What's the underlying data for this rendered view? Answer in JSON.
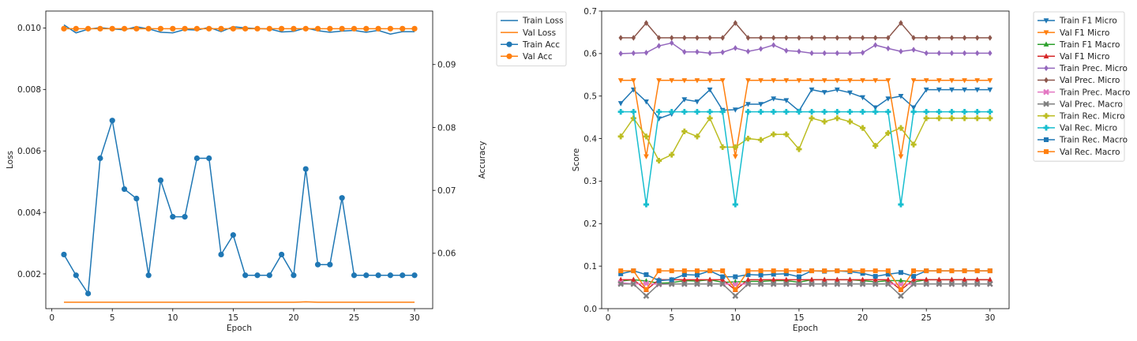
{
  "chart_data": [
    {
      "type": "line",
      "title": "",
      "xlabel": "Epoch",
      "ylabel": "Loss",
      "y2label": "Accuracy",
      "xlim": [
        -0.5,
        31.5
      ],
      "ylim": [
        0.00087,
        0.01055
      ],
      "y2lim": [
        0.0512,
        0.0985
      ],
      "xticks": [
        0,
        5,
        10,
        15,
        20,
        25,
        30
      ],
      "yticks": [
        0.002,
        0.004,
        0.006,
        0.008,
        0.01
      ],
      "yticklabels": [
        "0.002",
        "0.004",
        "0.006",
        "0.008",
        "0.010"
      ],
      "y2ticks": [
        0.06,
        0.07,
        0.08,
        0.09
      ],
      "y2ticklabels": [
        "0.06",
        "0.07",
        "0.08",
        "0.09"
      ],
      "legend_position": "outside-right",
      "x": [
        1,
        2,
        3,
        4,
        5,
        6,
        7,
        8,
        9,
        10,
        11,
        12,
        13,
        14,
        15,
        16,
        17,
        18,
        19,
        20,
        21,
        22,
        23,
        24,
        25,
        26,
        27,
        28,
        29,
        30
      ],
      "series": [
        {
          "name": "Train Loss",
          "axis": "left",
          "color": "#1f77b4",
          "marker": "none",
          "values": [
            0.0101,
            0.00984,
            0.00996,
            0.01001,
            0.00997,
            0.00994,
            0.01004,
            0.00997,
            0.00986,
            0.00984,
            0.00995,
            0.00993,
            0.01002,
            0.00988,
            0.01004,
            0.01,
            0.00998,
            0.00997,
            0.00987,
            0.00989,
            0.01,
            0.00991,
            0.00986,
            0.0099,
            0.00992,
            0.00986,
            0.00992,
            0.0098,
            0.00988,
            0.00988
          ]
        },
        {
          "name": "Val Loss",
          "axis": "left",
          "color": "#ff7f0e",
          "marker": "none",
          "values": [
            0.00108,
            0.00108,
            0.00108,
            0.00108,
            0.00108,
            0.00108,
            0.00108,
            0.00108,
            0.00108,
            0.00108,
            0.00108,
            0.00108,
            0.00108,
            0.00108,
            0.00108,
            0.00108,
            0.00108,
            0.00108,
            0.00108,
            0.00108,
            0.00109,
            0.00108,
            0.00108,
            0.00108,
            0.00108,
            0.00108,
            0.00108,
            0.00108,
            0.00108,
            0.00108
          ]
        },
        {
          "name": "Train Acc",
          "axis": "right",
          "color": "#1f77b4",
          "marker": "circle",
          "values": [
            0.0598,
            0.0565,
            0.0536,
            0.0751,
            0.0811,
            0.0702,
            0.0687,
            0.0565,
            0.0716,
            0.0658,
            0.0658,
            0.0751,
            0.0751,
            0.0598,
            0.0629,
            0.0565,
            0.0565,
            0.0565,
            0.0598,
            0.0565,
            0.0734,
            0.0582,
            0.0582,
            0.0688,
            0.0565,
            0.0565,
            0.0565,
            0.0565,
            0.0565,
            0.0565
          ]
        },
        {
          "name": "Val Acc",
          "axis": "right",
          "color": "#ff7f0e",
          "marker": "circle",
          "values": [
            0.0957,
            0.0957,
            0.0957,
            0.0957,
            0.0957,
            0.0957,
            0.0957,
            0.0957,
            0.0957,
            0.0957,
            0.0957,
            0.0957,
            0.0957,
            0.0957,
            0.0957,
            0.0957,
            0.0957,
            0.0957,
            0.0957,
            0.0957,
            0.0957,
            0.0957,
            0.0957,
            0.0957,
            0.0957,
            0.0957,
            0.0957,
            0.0957,
            0.0957,
            0.0957
          ]
        }
      ]
    },
    {
      "type": "line",
      "title": "",
      "xlabel": "Epoch",
      "ylabel": "Score",
      "xlim": [
        -0.5,
        31.5
      ],
      "ylim": [
        0.0,
        0.7
      ],
      "xticks": [
        0,
        5,
        10,
        15,
        20,
        25,
        30
      ],
      "yticks": [
        0.0,
        0.1,
        0.2,
        0.3,
        0.4,
        0.5,
        0.6,
        0.7
      ],
      "yticklabels": [
        "0.0",
        "0.1",
        "0.2",
        "0.3",
        "0.4",
        "0.5",
        "0.6",
        "0.7"
      ],
      "legend_position": "outside-right",
      "x": [
        1,
        2,
        3,
        4,
        5,
        6,
        7,
        8,
        9,
        10,
        11,
        12,
        13,
        14,
        15,
        16,
        17,
        18,
        19,
        20,
        21,
        22,
        23,
        24,
        25,
        26,
        27,
        28,
        29,
        30
      ],
      "series": [
        {
          "name": "Train F1 Micro",
          "color": "#1f77b4",
          "marker": "triangle-down",
          "values": [
            0.483,
            0.515,
            0.487,
            0.447,
            0.458,
            0.492,
            0.487,
            0.515,
            0.467,
            0.468,
            0.481,
            0.481,
            0.494,
            0.49,
            0.465,
            0.515,
            0.509,
            0.515,
            0.508,
            0.497,
            0.473,
            0.494,
            0.5,
            0.473,
            0.515,
            0.515,
            0.515,
            0.515,
            0.515,
            0.515
          ]
        },
        {
          "name": "Val F1 Micro",
          "color": "#ff7f0e",
          "marker": "triangle-down",
          "values": [
            0.537,
            0.537,
            0.358,
            0.537,
            0.537,
            0.537,
            0.537,
            0.537,
            0.537,
            0.358,
            0.537,
            0.537,
            0.537,
            0.537,
            0.537,
            0.537,
            0.537,
            0.537,
            0.537,
            0.537,
            0.537,
            0.537,
            0.358,
            0.537,
            0.537,
            0.537,
            0.537,
            0.537,
            0.537,
            0.537
          ]
        },
        {
          "name": "Train F1 Macro",
          "color": "#2ca02c",
          "marker": "triangle-up",
          "values": [
            0.065,
            0.068,
            0.065,
            0.06,
            0.061,
            0.066,
            0.065,
            0.068,
            0.062,
            0.063,
            0.064,
            0.064,
            0.066,
            0.066,
            0.062,
            0.068,
            0.068,
            0.068,
            0.068,
            0.066,
            0.063,
            0.066,
            0.066,
            0.063,
            0.068,
            0.068,
            0.068,
            0.068,
            0.068,
            0.068
          ]
        },
        {
          "name": "Val F1 Micro",
          "color": "#d62728",
          "marker": "triangle-up",
          "values": [
            0.068,
            0.068,
            0.044,
            0.068,
            0.068,
            0.068,
            0.068,
            0.068,
            0.068,
            0.044,
            0.068,
            0.068,
            0.068,
            0.068,
            0.068,
            0.068,
            0.068,
            0.068,
            0.068,
            0.068,
            0.068,
            0.068,
            0.044,
            0.068,
            0.068,
            0.068,
            0.068,
            0.068,
            0.068,
            0.068
          ]
        },
        {
          "name": "Train Prec. Micro",
          "color": "#9467bd",
          "marker": "diamond",
          "values": [
            0.6,
            0.601,
            0.602,
            0.618,
            0.625,
            0.604,
            0.604,
            0.601,
            0.603,
            0.613,
            0.605,
            0.611,
            0.62,
            0.607,
            0.605,
            0.601,
            0.601,
            0.601,
            0.601,
            0.602,
            0.62,
            0.612,
            0.605,
            0.609,
            0.601,
            0.601,
            0.601,
            0.601,
            0.601,
            0.601
          ]
        },
        {
          "name": "Val Prec. Micro",
          "color": "#8c564b",
          "marker": "diamond",
          "values": [
            0.637,
            0.637,
            0.672,
            0.637,
            0.637,
            0.637,
            0.637,
            0.637,
            0.637,
            0.672,
            0.637,
            0.637,
            0.637,
            0.637,
            0.637,
            0.637,
            0.637,
            0.637,
            0.637,
            0.637,
            0.637,
            0.637,
            0.672,
            0.637,
            0.637,
            0.637,
            0.637,
            0.637,
            0.637,
            0.637
          ]
        },
        {
          "name": "Train Prec. Macro",
          "color": "#e377c2",
          "marker": "x",
          "values": [
            0.061,
            0.058,
            0.059,
            0.057,
            0.058,
            0.058,
            0.058,
            0.058,
            0.058,
            0.057,
            0.058,
            0.058,
            0.058,
            0.058,
            0.057,
            0.058,
            0.058,
            0.058,
            0.058,
            0.058,
            0.058,
            0.058,
            0.057,
            0.058,
            0.058,
            0.058,
            0.058,
            0.058,
            0.058,
            0.058
          ]
        },
        {
          "name": "Val Prec. Macro",
          "color": "#7f7f7f",
          "marker": "x",
          "values": [
            0.058,
            0.058,
            0.03,
            0.058,
            0.058,
            0.058,
            0.058,
            0.058,
            0.058,
            0.03,
            0.058,
            0.058,
            0.058,
            0.058,
            0.058,
            0.058,
            0.058,
            0.058,
            0.058,
            0.058,
            0.058,
            0.058,
            0.03,
            0.058,
            0.058,
            0.058,
            0.058,
            0.058,
            0.058,
            0.058
          ]
        },
        {
          "name": "Train Rec. Micro",
          "color": "#bcbd22",
          "marker": "plus",
          "values": [
            0.405,
            0.448,
            0.405,
            0.348,
            0.362,
            0.417,
            0.405,
            0.448,
            0.38,
            0.38,
            0.4,
            0.397,
            0.41,
            0.41,
            0.375,
            0.448,
            0.44,
            0.448,
            0.44,
            0.425,
            0.383,
            0.413,
            0.425,
            0.386,
            0.448,
            0.448,
            0.448,
            0.448,
            0.448,
            0.448
          ]
        },
        {
          "name": "Val Rec. Micro",
          "color": "#17becf",
          "marker": "plus",
          "values": [
            0.463,
            0.463,
            0.245,
            0.463,
            0.463,
            0.463,
            0.463,
            0.463,
            0.463,
            0.245,
            0.463,
            0.463,
            0.463,
            0.463,
            0.463,
            0.463,
            0.463,
            0.463,
            0.463,
            0.463,
            0.463,
            0.463,
            0.245,
            0.463,
            0.463,
            0.463,
            0.463,
            0.463,
            0.463,
            0.463
          ]
        },
        {
          "name": "Train Rec. Macro",
          "color": "#1f77b4",
          "marker": "square",
          "values": [
            0.082,
            0.089,
            0.08,
            0.066,
            0.068,
            0.08,
            0.079,
            0.089,
            0.075,
            0.075,
            0.08,
            0.079,
            0.081,
            0.082,
            0.075,
            0.089,
            0.088,
            0.089,
            0.087,
            0.083,
            0.076,
            0.081,
            0.085,
            0.076,
            0.089,
            0.089,
            0.089,
            0.089,
            0.089,
            0.089
          ]
        },
        {
          "name": "Val Rec. Macro",
          "color": "#ff7f0e",
          "marker": "square",
          "values": [
            0.089,
            0.089,
            0.045,
            0.089,
            0.089,
            0.089,
            0.089,
            0.089,
            0.089,
            0.045,
            0.089,
            0.089,
            0.089,
            0.089,
            0.089,
            0.089,
            0.089,
            0.089,
            0.089,
            0.089,
            0.089,
            0.089,
            0.045,
            0.089,
            0.089,
            0.089,
            0.089,
            0.089,
            0.089,
            0.089
          ]
        }
      ]
    }
  ]
}
